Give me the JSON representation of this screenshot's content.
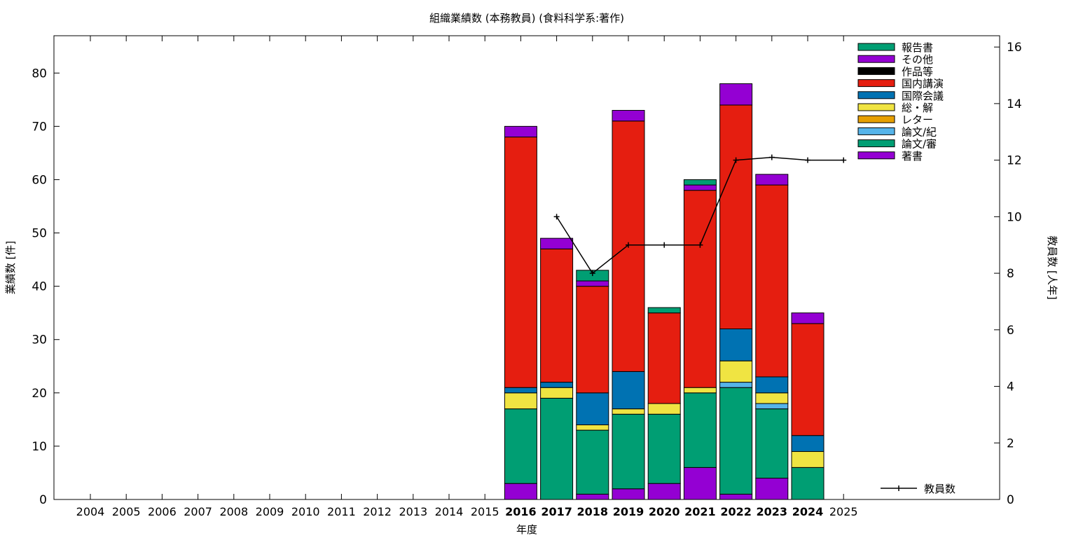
{
  "chart_data": {
    "type": "bar",
    "stacked": true,
    "title": "組織業績数 (本務教員) (食料科学系:著作)",
    "xlabel": "年度",
    "ylabel": "業績数 [件]",
    "y2label": "教員数 [人年]",
    "ylim": [
      0,
      87
    ],
    "y2lim": [
      0,
      16.4
    ],
    "yticks": [
      0,
      10,
      20,
      30,
      40,
      50,
      60,
      70,
      80
    ],
    "y2ticks": [
      0,
      2,
      4,
      6,
      8,
      10,
      12,
      14,
      16
    ],
    "categories": [
      "2004",
      "2005",
      "2006",
      "2007",
      "2008",
      "2009",
      "2010",
      "2011",
      "2012",
      "2013",
      "2014",
      "2015",
      "2016",
      "2017",
      "2018",
      "2019",
      "2020",
      "2021",
      "2022",
      "2023",
      "2024",
      "2025"
    ],
    "bold_categories": [
      "2016",
      "2017",
      "2018",
      "2019",
      "2020",
      "2021",
      "2022",
      "2023",
      "2024"
    ],
    "series": [
      {
        "name": "著書",
        "color": "#9400d3",
        "values": [
          0,
          0,
          0,
          0,
          0,
          0,
          0,
          0,
          0,
          0,
          0,
          0,
          3,
          0,
          1,
          2,
          3,
          6,
          1,
          4,
          0,
          0
        ]
      },
      {
        "name": "論文/審",
        "color": "#009e73",
        "values": [
          0,
          0,
          0,
          0,
          0,
          0,
          0,
          0,
          0,
          0,
          0,
          0,
          14,
          19,
          12,
          14,
          13,
          14,
          20,
          13,
          6,
          0
        ]
      },
      {
        "name": "論文/紀",
        "color": "#56b4e9",
        "values": [
          0,
          0,
          0,
          0,
          0,
          0,
          0,
          0,
          0,
          0,
          0,
          0,
          0,
          0,
          0,
          0,
          0,
          0,
          1,
          1,
          0,
          0
        ]
      },
      {
        "name": "レター",
        "color": "#e69f00",
        "values": [
          0,
          0,
          0,
          0,
          0,
          0,
          0,
          0,
          0,
          0,
          0,
          0,
          0,
          0,
          0,
          0,
          0,
          0,
          0,
          0,
          0,
          0
        ]
      },
      {
        "name": "総・解",
        "color": "#f0e442",
        "values": [
          0,
          0,
          0,
          0,
          0,
          0,
          0,
          0,
          0,
          0,
          0,
          0,
          3,
          2,
          1,
          1,
          2,
          1,
          4,
          2,
          3,
          0
        ]
      },
      {
        "name": "国際会議",
        "color": "#0072b2",
        "values": [
          0,
          0,
          0,
          0,
          0,
          0,
          0,
          0,
          0,
          0,
          0,
          0,
          1,
          1,
          6,
          7,
          0,
          0,
          6,
          3,
          3,
          0
        ]
      },
      {
        "name": "国内講演",
        "color": "#e51e10",
        "values": [
          0,
          0,
          0,
          0,
          0,
          0,
          0,
          0,
          0,
          0,
          0,
          0,
          47,
          25,
          20,
          47,
          17,
          37,
          42,
          36,
          21,
          0
        ]
      },
      {
        "name": "作品等",
        "color": "#000000",
        "values": [
          0,
          0,
          0,
          0,
          0,
          0,
          0,
          0,
          0,
          0,
          0,
          0,
          0,
          0,
          0,
          0,
          0,
          0,
          0,
          0,
          0,
          0
        ]
      },
      {
        "name": "その他",
        "color": "#9400d3",
        "values": [
          0,
          0,
          0,
          0,
          0,
          0,
          0,
          0,
          0,
          0,
          0,
          0,
          2,
          2,
          1,
          2,
          0,
          1,
          4,
          2,
          2,
          0
        ]
      },
      {
        "name": "報告書",
        "color": "#009e73",
        "values": [
          0,
          0,
          0,
          0,
          0,
          0,
          0,
          0,
          0,
          0,
          0,
          0,
          0,
          0,
          2,
          0,
          1,
          1,
          0,
          0,
          0,
          0
        ]
      }
    ],
    "line": {
      "name": "教員数",
      "color": "#000000",
      "axis": "y2",
      "points": [
        [
          "2017",
          10
        ],
        [
          "2018",
          8
        ],
        [
          "2019",
          9
        ],
        [
          "2020",
          9
        ],
        [
          "2021",
          9
        ],
        [
          "2022",
          12
        ],
        [
          "2023",
          12.1
        ],
        [
          "2024",
          12
        ],
        [
          "2025",
          12
        ]
      ]
    },
    "legend_position": "top-right",
    "line_legend_position": "bottom-right",
    "grid": false
  }
}
